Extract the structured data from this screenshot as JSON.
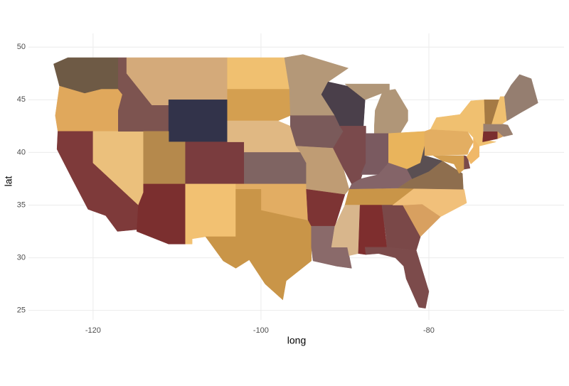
{
  "chart_data": {
    "type": "map",
    "x_label": "long",
    "y_label": "lat",
    "xlim": [
      -127.7,
      -63.9
    ],
    "ylim": [
      24.1,
      51.3
    ],
    "xticks": [
      -120,
      -100,
      -80
    ],
    "yticks": [
      25,
      30,
      35,
      40,
      45,
      50
    ],
    "grid": true,
    "regions": [
      {
        "color": "#6e5a45",
        "long": [
          -124.7,
          -123,
          -117,
          -117,
          -119,
          -121,
          -124
        ],
        "lat": [
          48.4,
          49,
          49,
          46,
          46,
          45.6,
          46.3
        ]
      },
      {
        "color": "#e0a85c",
        "long": [
          -124,
          -121,
          -119,
          -117,
          -116.5,
          -117,
          -117,
          -124.2,
          -124.5
        ],
        "lat": [
          46.3,
          45.6,
          46,
          46,
          45.5,
          44,
          42,
          42,
          43.5
        ]
      },
      {
        "color": "#7e3a3a",
        "long": [
          -124.2,
          -120,
          -120,
          -114.6,
          -114.5,
          -117.1,
          -118.5,
          -120.6,
          -122.5,
          -124.3
        ],
        "lat": [
          42,
          42,
          39,
          35,
          32.7,
          32.5,
          34,
          34.6,
          37.5,
          40.3
        ]
      },
      {
        "color": "#ebc07c",
        "long": [
          -120,
          -114,
          -114,
          -114.6,
          -120
        ],
        "lat": [
          42,
          42,
          36.2,
          35,
          39
        ]
      },
      {
        "color": "#7d5450",
        "long": [
          -117,
          -116,
          -116,
          -114.5,
          -113,
          -111,
          -111,
          -117,
          -117,
          -116.5,
          -117
        ],
        "lat": [
          49,
          49,
          47.5,
          46,
          44.5,
          44.5,
          42,
          42,
          44,
          45.5,
          46
        ]
      },
      {
        "color": "#d4aa7a",
        "long": [
          -116,
          -104,
          -104,
          -111,
          -111,
          -113,
          -114.5,
          -116
        ],
        "lat": [
          49,
          49,
          45,
          45,
          44.5,
          44.5,
          46,
          47.5
        ]
      },
      {
        "color": "#32334a",
        "long": [
          -111,
          -104,
          -104,
          -111
        ],
        "lat": [
          45,
          45,
          41,
          41
        ]
      },
      {
        "color": "#b5894c",
        "long": [
          -114,
          -111,
          -111,
          -109,
          -109,
          -114
        ],
        "lat": [
          42,
          42,
          41,
          41,
          37,
          37
        ]
      },
      {
        "color": "#7a3c3e",
        "long": [
          -109,
          -102,
          -102,
          -109
        ],
        "lat": [
          41,
          41,
          37,
          37
        ]
      },
      {
        "color": "#7b2f2f",
        "long": [
          -114,
          -109,
          -109,
          -111,
          -114.8,
          -114.6,
          -114
        ],
        "lat": [
          37,
          37,
          31.3,
          31.3,
          32.5,
          35,
          36.2
        ]
      },
      {
        "color": "#f2c172",
        "long": [
          -109,
          -103,
          -103,
          -106.6,
          -108.2,
          -108.2,
          -109
        ],
        "lat": [
          37,
          37,
          32,
          32,
          31.8,
          31.3,
          31.3
        ]
      },
      {
        "color": "#f0c070",
        "long": [
          -104,
          -97.2,
          -96.6,
          -104
        ],
        "lat": [
          49,
          49,
          46,
          46
        ]
      },
      {
        "color": "#d49f50",
        "long": [
          -104,
          -96.6,
          -96.5,
          -98,
          -104
        ],
        "lat": [
          46,
          46,
          43.5,
          43,
          43
        ]
      },
      {
        "color": "#e0b883",
        "long": [
          -104,
          -98,
          -96.5,
          -95.3,
          -102,
          -102,
          -104
        ],
        "lat": [
          43,
          43,
          42.5,
          40,
          40,
          41,
          41
        ]
      },
      {
        "color": "#7f6462",
        "long": [
          -102,
          -95.3,
          -94.6,
          -94.6,
          -102
        ],
        "lat": [
          40,
          40,
          39,
          37,
          37
        ]
      },
      {
        "color": "#e2ad63",
        "long": [
          -103,
          -94.6,
          -94.4,
          -96,
          -100,
          -100,
          -103
        ],
        "lat": [
          37,
          37,
          33.6,
          33.8,
          34.5,
          36.5,
          36.5
        ]
      },
      {
        "color": "#c99548",
        "long": [
          -106.6,
          -103,
          -103,
          -100,
          -100,
          -96,
          -94,
          -94,
          -97,
          -97.4,
          -99.5,
          -101.4,
          -103,
          -104.5
        ],
        "lat": [
          32,
          32,
          36.5,
          36.5,
          34.5,
          33.8,
          33.5,
          29.7,
          27.8,
          26,
          27.5,
          29.8,
          29,
          29.7
        ]
      },
      {
        "color": "#b49878",
        "long": [
          -97.2,
          -95,
          -89.6,
          -92,
          -92.8,
          -91.2,
          -96.5,
          -96.6
        ],
        "lat": [
          49,
          49.3,
          48,
          46.7,
          45.5,
          43.5,
          43.5,
          46
        ]
      },
      {
        "color": "#7a5a5a",
        "long": [
          -96.5,
          -91.2,
          -90.2,
          -91.4,
          -95.8,
          -96.5
        ],
        "lat": [
          43.5,
          43.5,
          42,
          40.4,
          40.6,
          42.5
        ]
      },
      {
        "color": "#bf9c74",
        "long": [
          -95.8,
          -91.4,
          -90.2,
          -89.5,
          -90,
          -94.6,
          -94.6,
          -95.3
        ],
        "lat": [
          40.6,
          40.4,
          38.5,
          36.5,
          36,
          36.5,
          39,
          40
        ]
      },
      {
        "color": "#7d3434",
        "long": [
          -94.6,
          -90,
          -91.2,
          -94,
          -94.4
        ],
        "lat": [
          36.5,
          36,
          33,
          33,
          33.6
        ]
      },
      {
        "color": "#8a6a6a",
        "long": [
          -94,
          -91.2,
          -91.6,
          -89.7,
          -89.5,
          -89.2,
          -91,
          -93.8,
          -94
        ],
        "lat": [
          33,
          33,
          31,
          31,
          30.2,
          29,
          29.2,
          29.7,
          31
        ]
      },
      {
        "color": "#4a3f4a",
        "long": [
          -92,
          -88,
          -87.6,
          -87.8,
          -90.6,
          -91.2,
          -92.8
        ],
        "lat": [
          46.7,
          46,
          45,
          42.5,
          42.5,
          43.5,
          45.5
        ]
      },
      {
        "color": "#7a4a4c",
        "long": [
          -90.6,
          -87.5,
          -87.5,
          -88.1,
          -89.2,
          -90.2,
          -91.4,
          -90.2
        ],
        "lat": [
          42.5,
          42.5,
          39,
          37.5,
          37,
          38.5,
          40.4,
          42
        ]
      },
      {
        "color": "#b09678",
        "long": [
          -86.5,
          -83.5,
          -82.5,
          -82.5,
          -84,
          -85.5,
          -86.4,
          -86.5
        ],
        "lat": [
          41.8,
          41.7,
          43,
          44,
          46,
          45.8,
          44,
          42.5
        ]
      },
      {
        "color": "#b09678",
        "long": [
          -90,
          -84.7,
          -84.7,
          -87.6
        ],
        "lat": [
          46.5,
          46.5,
          45.9,
          45
        ]
      },
      {
        "color": "#7a5a60",
        "long": [
          -87.5,
          -84.8,
          -84.8,
          -86,
          -88.1,
          -87.5
        ],
        "lat": [
          41.8,
          41.8,
          39,
          37.9,
          37.9,
          39
        ]
      },
      {
        "color": "#e9b45c",
        "long": [
          -84.8,
          -80.5,
          -80.5,
          -81,
          -82.6,
          -84.8
        ],
        "lat": [
          41.8,
          42,
          40.6,
          39,
          38.4,
          39
        ]
      },
      {
        "color": "#846468",
        "long": [
          -89.5,
          -83.7,
          -82,
          -82.6,
          -84.8,
          -86,
          -88.1,
          -89.2
        ],
        "lat": [
          36.5,
          36.6,
          37.5,
          38.4,
          39,
          37.9,
          37.5,
          37
        ]
      },
      {
        "color": "#c99548",
        "long": [
          -90,
          -84.3,
          -81.7,
          -89.5
        ],
        "lat": [
          35,
          35,
          36.6,
          36.5
        ]
      },
      {
        "color": "#d8b68c",
        "long": [
          -91.2,
          -90,
          -88.2,
          -88.4,
          -89.5,
          -89.7,
          -91.6
        ],
        "lat": [
          33,
          35,
          35,
          30.4,
          30.2,
          31,
          31
        ]
      },
      {
        "color": "#7e2e2e",
        "long": [
          -88.2,
          -85.6,
          -85,
          -87.6,
          -87.5,
          -88.4
        ],
        "lat": [
          35,
          35,
          31,
          31,
          30.3,
          30.4
        ]
      },
      {
        "color": "#7a4848",
        "long": [
          -85.6,
          -83.1,
          -81,
          -81.5,
          -85,
          -85.1
        ],
        "lat": [
          35,
          35,
          32,
          30.7,
          31,
          32
        ]
      },
      {
        "color": "#7c4b4b",
        "long": [
          -87.6,
          -85,
          -81.5,
          -80,
          -80.4,
          -81.2,
          -82.7,
          -83,
          -84,
          -86,
          -87.5
        ],
        "lat": [
          31,
          31,
          30.7,
          26.8,
          25.2,
          25.3,
          28,
          29.2,
          30,
          30.4,
          30.3
        ]
      },
      {
        "color": "#d8a060",
        "long": [
          -83.1,
          -80.8,
          -78.6,
          -81
        ],
        "lat": [
          35,
          35.1,
          33.9,
          32
        ]
      },
      {
        "color": "#f1c07a",
        "long": [
          -84.3,
          -81.7,
          -75.8,
          -75.5,
          -78.6,
          -80.8,
          -83.1
        ],
        "lat": [
          35,
          36.6,
          36.5,
          35.2,
          33.9,
          35.1,
          35
        ]
      },
      {
        "color": "#8e6e4e",
        "long": [
          -83.7,
          -75.9,
          -76,
          -77.2,
          -78.4,
          -80,
          -82
        ],
        "lat": [
          36.6,
          36.5,
          38,
          38.6,
          39.2,
          38.2,
          37.5
        ]
      },
      {
        "color": "#5a4f52",
        "long": [
          -82.6,
          -82,
          -80,
          -78.4,
          -80.5,
          -80.5,
          -81
        ],
        "lat": [
          38.4,
          37.5,
          38.2,
          39.2,
          39.7,
          40.6,
          39
        ]
      },
      {
        "color": "#d49f50",
        "long": [
          -79.5,
          -75.8,
          -75.8,
          -76.4,
          -77,
          -78.4
        ],
        "lat": [
          39.7,
          39.7,
          38.4,
          38,
          38.9,
          39.2
        ]
      },
      {
        "color": "#7a4a4a",
        "long": [
          -75.8,
          -75.4,
          -75.1,
          -75.8
        ],
        "lat": [
          39.7,
          39.6,
          38.5,
          38.4
        ]
      },
      {
        "color": "#e3ae62",
        "long": [
          -80.5,
          -79.8,
          -75.4,
          -74.7,
          -75.2,
          -75.4,
          -80.5
        ],
        "lat": [
          42,
          42.2,
          42,
          41,
          40.3,
          39.8,
          39.7
        ]
      },
      {
        "color": "#f0b868",
        "long": [
          -74.7,
          -74,
          -74,
          -75,
          -75.5,
          -74.7
        ],
        "lat": [
          41.4,
          40.8,
          39.6,
          38.9,
          39.6,
          40.5
        ]
      },
      {
        "color": "#f0c070",
        "long": [
          -79.8,
          -79.1,
          -76.3,
          -75,
          -73.3,
          -73.3,
          -73.5,
          -72,
          -74,
          -74.7,
          -75.4
        ],
        "lat": [
          42.2,
          43.3,
          43.6,
          44.9,
          45,
          42.7,
          41.2,
          41,
          40.6,
          41.4,
          42
        ]
      },
      {
        "color": "#7a2e2e",
        "long": [
          -73.5,
          -71.8,
          -71.8,
          -73.6
        ],
        "lat": [
          42,
          42,
          41.3,
          41
        ]
      },
      {
        "color": "#d6a060",
        "long": [
          -71.8,
          -71.4,
          -71.2,
          -71.8
        ],
        "lat": [
          42,
          42,
          41.5,
          41.3
        ]
      },
      {
        "color": "#9a8070",
        "long": [
          -73.5,
          -71.3,
          -70.6,
          -70,
          -71.1,
          -71.8,
          -73.5
        ],
        "lat": [
          42.7,
          42.7,
          42.6,
          41.7,
          41.5,
          42,
          42
        ]
      },
      {
        "color": "#a57a44",
        "long": [
          -73.4,
          -71.5,
          -72.5,
          -73.3
        ],
        "lat": [
          45,
          45,
          42.7,
          42.7
        ]
      },
      {
        "color": "#f0c070",
        "long": [
          -71.5,
          -71,
          -70.7,
          -71.3,
          -72.5
        ],
        "lat": [
          45.3,
          45.3,
          43,
          42.7,
          42.7
        ]
      },
      {
        "color": "#957e70",
        "long": [
          -71,
          -70.7,
          -69,
          -67,
          -67.8,
          -69.2,
          -70.2
        ],
        "lat": [
          45.3,
          43,
          43.8,
          44.7,
          47,
          47.4,
          46.4
        ]
      }
    ]
  }
}
